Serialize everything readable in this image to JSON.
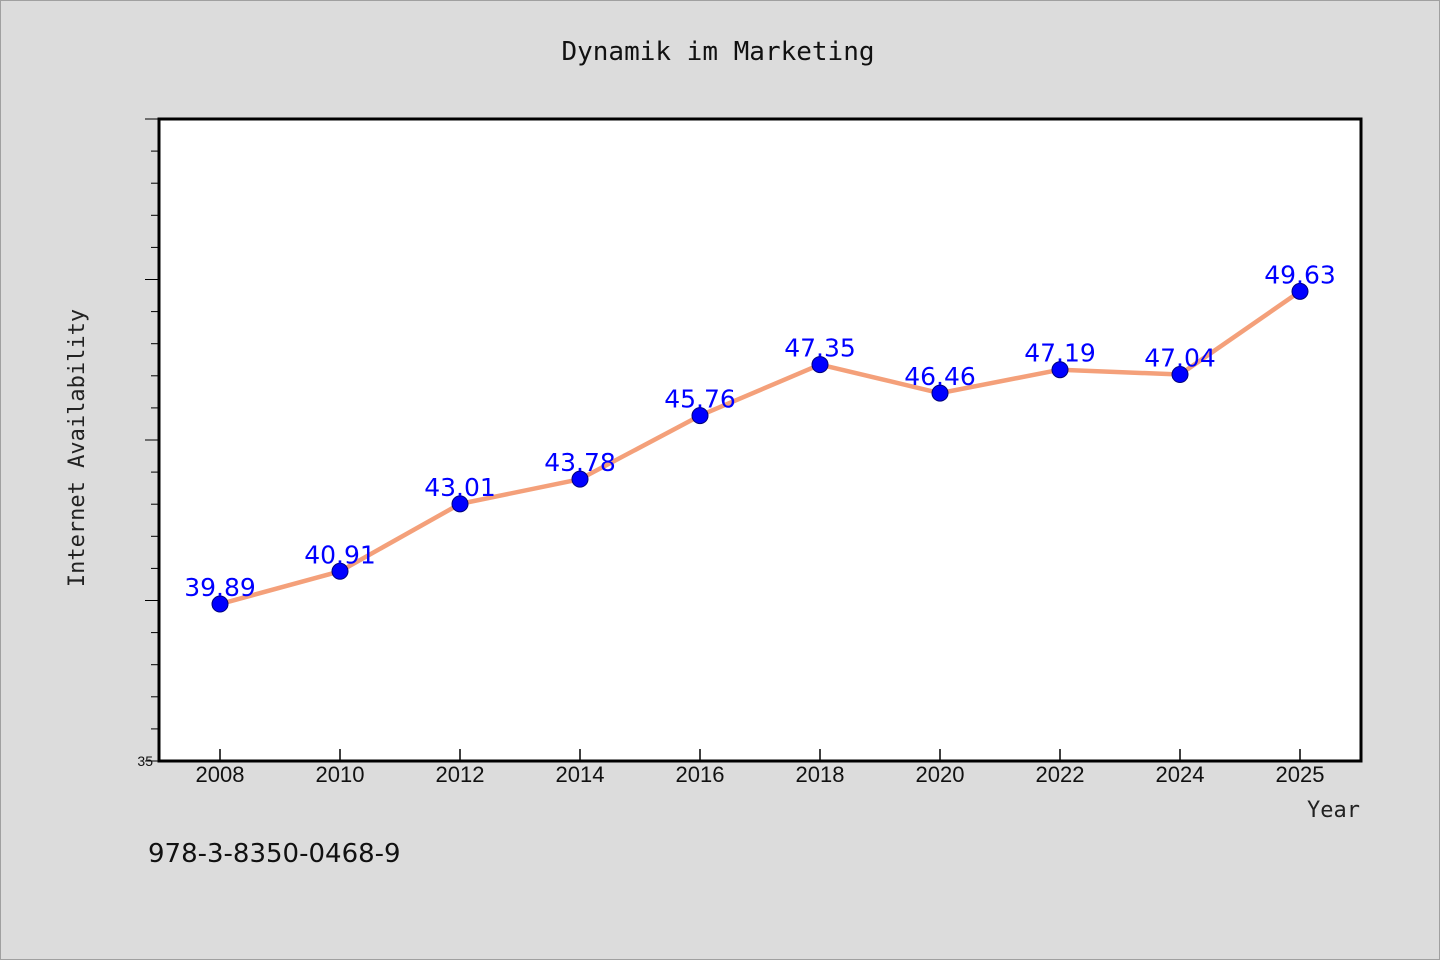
{
  "chart_data": {
    "type": "line",
    "title": "Dynamik im Marketing",
    "xlabel": "Year",
    "ylabel": "Internet Availability",
    "categories": [
      "2008",
      "2010",
      "2012",
      "2014",
      "2016",
      "2018",
      "2020",
      "2022",
      "2024",
      "2025"
    ],
    "series": [
      {
        "values": [
          39.89,
          40.91,
          43.01,
          43.78,
          45.76,
          47.35,
          46.46,
          47.19,
          47.04,
          49.63
        ],
        "data_labels": [
          "39.89",
          "40.91",
          "43.01",
          "43.78",
          "45.76",
          "47.35",
          "46.46",
          "47.19",
          "47.04",
          "49.63"
        ],
        "line_color": "#f4a07a",
        "marker_color": "#0000ff"
      }
    ],
    "ylim": [
      35,
      55
    ],
    "y_tick_labels": [
      "35"
    ],
    "grid": false,
    "legend": "none"
  },
  "footer": {
    "isbn": "978-3-8350-0468-9"
  },
  "colors": {
    "background": "#dcdcdc",
    "plot_background": "#ffffff",
    "line": "#f4a07a",
    "marker": "#0000ff",
    "data_label": "#0000ff"
  }
}
